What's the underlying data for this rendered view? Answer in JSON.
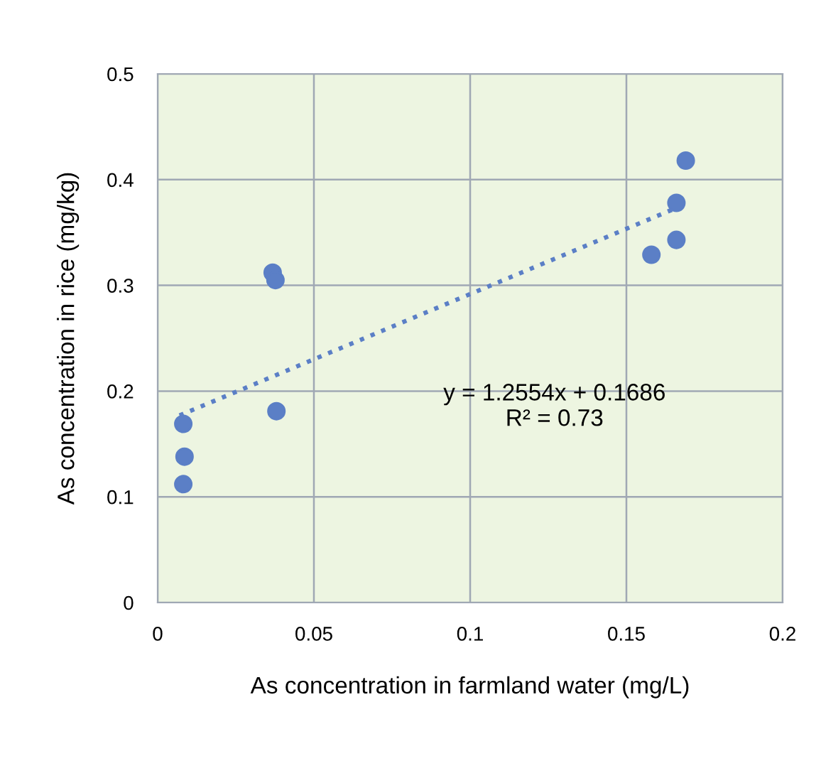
{
  "chart_data": {
    "type": "scatter",
    "xlabel": "As concentration in farmland water (mg/L)",
    "ylabel": "As concentration in rice (mg/kg)",
    "series": [
      {
        "color": "#5b7fc6",
        "marker": "circle",
        "x": [
          0.0082,
          0.0086,
          0.0082,
          0.0368,
          0.0377,
          0.038,
          0.158,
          0.166,
          0.166,
          0.169
        ],
        "values": [
          0.169,
          0.138,
          0.112,
          0.312,
          0.305,
          0.181,
          0.329,
          0.378,
          0.343,
          0.418
        ]
      },
      {
        "type": "line",
        "color": "#5b7fc6",
        "line_style": "dotted",
        "marker": "none",
        "x": [
          0.007,
          0.165
        ],
        "values": [
          0.177,
          0.372
        ]
      }
    ],
    "annotations": [
      "y = 1.2554x + 0.1686\nR² = 0.73"
    ],
    "xlim": [
      0,
      0.2
    ],
    "xticks": [
      0,
      0.05,
      0.1,
      0.15,
      0.2
    ],
    "ylim": [
      0,
      0.5
    ],
    "yticks": [
      0,
      0.1,
      0.2,
      0.3,
      0.4,
      0.5
    ],
    "grid": true,
    "legend": false
  }
}
